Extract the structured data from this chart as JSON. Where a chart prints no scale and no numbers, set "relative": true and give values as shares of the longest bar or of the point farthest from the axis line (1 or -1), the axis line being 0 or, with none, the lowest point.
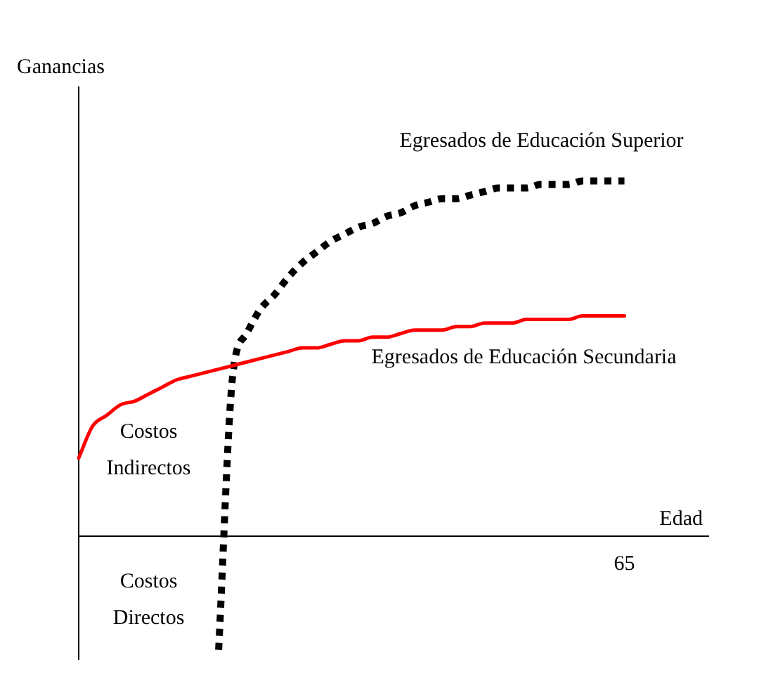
{
  "chart_data": {
    "type": "line",
    "relative": true,
    "xlabel": "Edad",
    "ylabel": "Ganancias",
    "grid": false,
    "legend": false,
    "marker": "none",
    "categories": [
      null,
      null,
      null,
      null,
      null,
      null,
      null,
      null,
      null,
      null,
      null,
      null,
      null,
      null,
      null,
      null,
      null,
      null,
      null,
      null,
      null,
      null,
      null,
      null,
      null,
      null,
      null,
      null,
      null,
      null,
      null,
      null,
      null,
      null,
      null,
      null,
      null,
      null,
      null,
      null,
      null,
      null,
      null,
      null,
      null,
      null
    ],
    "series": [
      {
        "name": "Egresados de Educación Secundaria",
        "color": "#ff0000",
        "line_style": "solid",
        "values": [
          0.22,
          0.31,
          0.34,
          0.37,
          0.38,
          0.4,
          0.42,
          0.44,
          0.45,
          0.46,
          0.47,
          0.48,
          0.49,
          0.5,
          0.51,
          0.52,
          0.53,
          0.53,
          0.54,
          0.55,
          0.55,
          0.56,
          0.56,
          0.57,
          0.58,
          0.58,
          0.58,
          0.59,
          0.59,
          0.6,
          0.6,
          0.6,
          0.61,
          0.61,
          0.61,
          0.61,
          0.62,
          0.62,
          0.62,
          0.62,
          null,
          null,
          null,
          null,
          null,
          null
        ]
      },
      {
        "name": "Egresados de Educación Superior",
        "color": "#000000",
        "line_style": "dotted",
        "values": [
          null,
          null,
          null,
          null,
          null,
          null,
          null,
          null,
          null,
          null,
          -0.32,
          0.45,
          0.57,
          0.64,
          0.68,
          0.73,
          0.77,
          0.8,
          0.83,
          0.85,
          0.87,
          0.88,
          0.9,
          0.91,
          0.93,
          0.94,
          0.95,
          0.95,
          0.96,
          0.97,
          0.98,
          0.98,
          0.98,
          0.99,
          0.99,
          0.99,
          1.0,
          1.0,
          1.0,
          1.0,
          null,
          null,
          null,
          null,
          null,
          null
        ]
      }
    ],
    "annotations": [
      "Costos Indirectos",
      "Costos Directos",
      "65"
    ]
  }
}
